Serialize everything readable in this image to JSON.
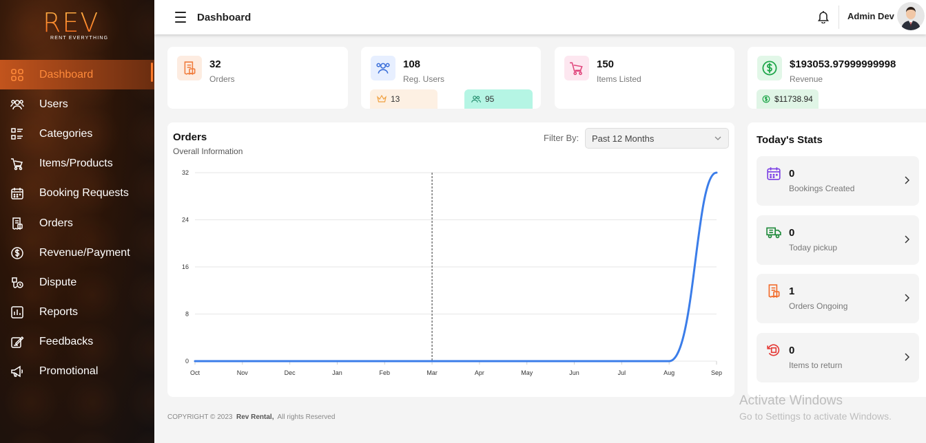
{
  "brand": {
    "logo": "REV",
    "tagline": "RENT EVERYTHING"
  },
  "sidebar": {
    "items": [
      {
        "label": "Dashboard",
        "icon": "grid-icon",
        "active": true
      },
      {
        "label": "Users",
        "icon": "users-icon"
      },
      {
        "label": "Categories",
        "icon": "list-icon"
      },
      {
        "label": "Items/Products",
        "icon": "cart-icon"
      },
      {
        "label": "Booking Requests",
        "icon": "calendar-icon"
      },
      {
        "label": "Orders",
        "icon": "receipt-icon"
      },
      {
        "label": "Revenue/Payment",
        "icon": "dollar-icon"
      },
      {
        "label": "Dispute",
        "icon": "dispute-icon"
      },
      {
        "label": "Reports",
        "icon": "report-icon"
      },
      {
        "label": "Feedbacks",
        "icon": "feedback-icon"
      },
      {
        "label": "Promotional",
        "icon": "megaphone-icon"
      }
    ]
  },
  "header": {
    "title": "Dashboard",
    "user_name": "Admin Dev"
  },
  "stats": {
    "orders": {
      "value": "32",
      "label": "Orders"
    },
    "users": {
      "value": "108",
      "label": "Reg. Users",
      "chip_premium": "13",
      "chip_group": "95"
    },
    "items": {
      "value": "150",
      "label": "Items Listed"
    },
    "revenue": {
      "value": "$193053.97999999998",
      "label": "Revenue",
      "chip": "$11738.94"
    }
  },
  "orders_chart": {
    "title": "Orders",
    "subtitle": "Overall Information",
    "filter_label": "Filter By:",
    "filter_value": "Past 12 Months"
  },
  "chart_data": {
    "type": "line",
    "title": "Orders",
    "x": [
      "Oct",
      "Nov",
      "Dec",
      "Jan",
      "Feb",
      "Mar",
      "Apr",
      "May",
      "Jun",
      "Jul",
      "Aug",
      "Sep"
    ],
    "series": [
      {
        "values": [
          0,
          0,
          0,
          0,
          0,
          0,
          0,
          0,
          0,
          0,
          0,
          32
        ]
      }
    ],
    "ylim": [
      0,
      32
    ],
    "yticks": [
      "0",
      "8",
      "16",
      "24",
      "32"
    ],
    "grid": true,
    "line_color": "#3b7de9",
    "hover_marker": "Mar"
  },
  "today": {
    "title": "Today's Stats",
    "items": [
      {
        "value": "0",
        "label": "Bookings Created",
        "icon": "calendar-icon",
        "color": "#7b3fe4"
      },
      {
        "value": "0",
        "label": "Today pickup",
        "icon": "truck-icon",
        "color": "#1f8a3b"
      },
      {
        "value": "1",
        "label": "Orders Ongoing",
        "icon": "receipt-icon",
        "color": "#f26b2a"
      },
      {
        "value": "0",
        "label": "Items to return",
        "icon": "return-icon",
        "color": "#e53935"
      }
    ]
  },
  "footer": {
    "prefix": "COPYRIGHT © 2023",
    "brand": "Rev Rental,",
    "suffix": "All rights Reserved"
  },
  "windows_watermark": {
    "line1": "Activate Windows",
    "line2": "Go to Settings to activate Windows."
  },
  "colors": {
    "accent": "#ff7a2a",
    "chart_line": "#3b7de9"
  }
}
